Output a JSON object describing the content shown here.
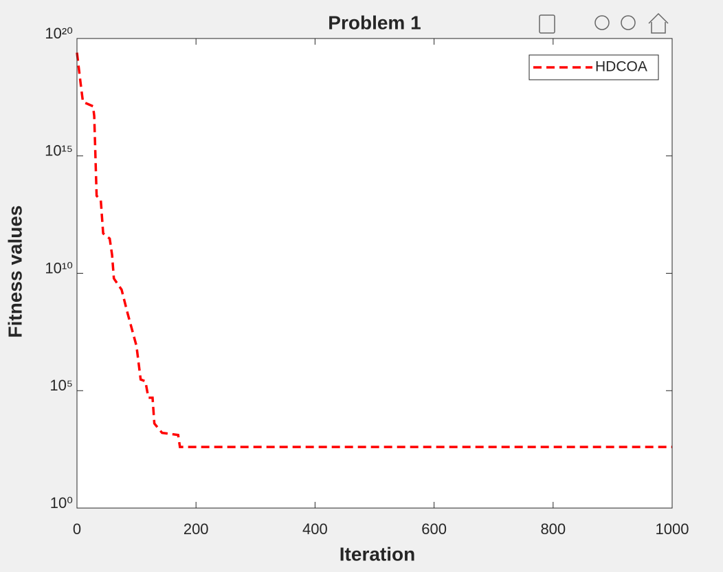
{
  "chart_data": {
    "type": "line",
    "title": "Problem 1",
    "xlabel": "Iteration",
    "ylabel": "Fitness values",
    "x": [
      0,
      6,
      10,
      27,
      29,
      33,
      40,
      44,
      55,
      59,
      62,
      75,
      85,
      100,
      107,
      115,
      120,
      127,
      130,
      143,
      170,
      173,
      1000
    ],
    "series": [
      {
        "name": "HDCOA",
        "color": "#ff0000",
        "values": [
          2.5e+19,
          1.3e+18,
          2e+17,
          1.3e+17,
          5e+16,
          20000000000000.0,
          13000000000000.0,
          500000000000.0,
          300000000000.0,
          60000000000.0,
          6000000000.0,
          2000000000.0,
          200000000.0,
          8000000.0,
          300000.0,
          250000.0,
          50000.0,
          50000.0,
          4000.0,
          1600.0,
          1300.0,
          400,
          400
        ]
      }
    ],
    "xlim": [
      0,
      1000
    ],
    "xticks": [
      0,
      200,
      400,
      600,
      800,
      1000
    ],
    "ylim": [
      1,
      1e+20
    ],
    "ylog": true,
    "yticks": [
      {
        "value": 1,
        "label": "10⁰"
      },
      {
        "value": 100000,
        "label": "10⁵"
      },
      {
        "value": 10000000000,
        "label": "10¹⁰"
      },
      {
        "value": 1000000000000000.0,
        "label": "10¹⁵"
      },
      {
        "value": 1e+20,
        "label": "10²⁰"
      }
    ],
    "legend": "upper-right"
  }
}
